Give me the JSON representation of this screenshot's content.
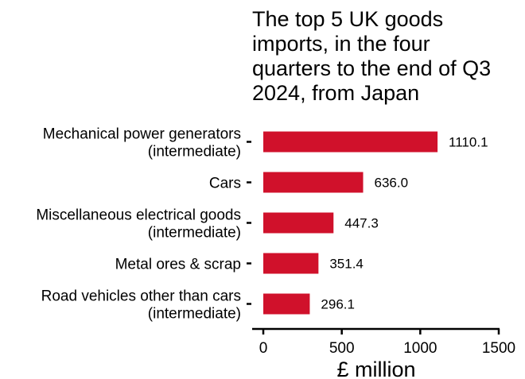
{
  "chart_data": {
    "type": "bar",
    "orientation": "horizontal",
    "title_lines": [
      "The top 5 UK goods",
      "imports, in the four",
      "quarters to the end of Q3",
      "2024, from Japan"
    ],
    "categories": [
      [
        "Mechanical power generators",
        "(intermediate)"
      ],
      [
        "Cars"
      ],
      [
        "Miscellaneous electrical goods",
        "(intermediate)"
      ],
      [
        "Metal ores & scrap"
      ],
      [
        "Road vehicles other than cars",
        "(intermediate)"
      ]
    ],
    "values": [
      1110.1,
      636.0,
      447.3,
      351.4,
      296.1
    ],
    "value_labels": [
      "1110.1",
      "636.0",
      "447.3",
      "351.4",
      "296.1"
    ],
    "xlabel": "£ million",
    "xlim": [
      0,
      1500
    ],
    "xticks": [
      0,
      500,
      1000,
      1500
    ],
    "bar_color": "#d0112b",
    "grid": false,
    "legend": "none"
  }
}
